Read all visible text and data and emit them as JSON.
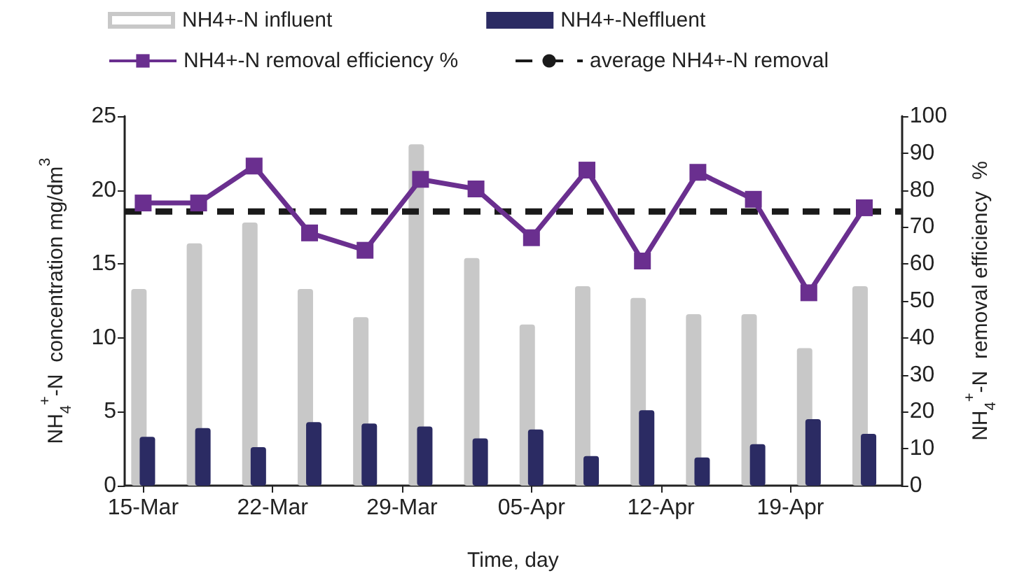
{
  "chart_data": {
    "type": "bar",
    "xlabel": "Time, day",
    "ylabel": "NH$_{4}$$^{+}$-N  concentration mg/dm$^{3}$",
    "y2label": "NH$_{4}$$^{+}$-N  removal efficiency  %",
    "x": [
      "--03-15",
      "--03-18",
      "--03-21",
      "--03-24",
      "--03-27",
      "--03-30",
      "--04-02",
      "--04-05",
      "--04-08",
      "--04-11",
      "--04-14",
      "--04-17",
      "--04-20",
      "--04-23"
    ],
    "series": [
      {
        "name": "NH4+-N influent",
        "color": "#c8c8c8",
        "values": [
          13.3,
          16.4,
          17.8,
          13.3,
          11.4,
          23.1,
          15.4,
          10.9,
          13.5,
          12.7,
          11.6,
          11.6,
          9.3,
          13.5
        ]
      },
      {
        "name": "NH4+-Neffluent",
        "color": "#2b2b63",
        "values": [
          3.3,
          3.9,
          2.6,
          4.3,
          4.2,
          4.0,
          3.2,
          3.8,
          2.0,
          5.1,
          1.9,
          2.8,
          4.5,
          3.5
        ]
      },
      {
        "name": "NH4+-N removal efficiency %",
        "type": "line",
        "axis": "y2",
        "color": "#6a2f8f",
        "values": [
          76.5,
          76.5,
          86.5,
          68.4,
          63.7,
          82.9,
          80.3,
          67.1,
          85.4,
          60.8,
          84.8,
          77.5,
          52.2,
          75.2
        ]
      }
    ],
    "ref_lines": [
      {
        "axis": "y2",
        "value": 74.2,
        "label": "average NH4+-N removal",
        "color": "#1a1a1a",
        "line_style": "dashed"
      }
    ],
    "xlim": [
      "--03-14",
      "--04-25"
    ],
    "xticks": [
      {
        "value": "--03-15",
        "label": "15-Mar"
      },
      {
        "value": "--03-22",
        "label": "22-Mar"
      },
      {
        "value": "--03-29",
        "label": "29-Mar"
      },
      {
        "value": "--04-05",
        "label": "05-Apr"
      },
      {
        "value": "--04-12",
        "label": "12-Apr"
      },
      {
        "value": "--04-19",
        "label": "19-Apr"
      }
    ],
    "ylim": [
      0,
      25
    ],
    "yticks": [
      0,
      5,
      10,
      15,
      20,
      25
    ],
    "y2lim": [
      0,
      100
    ],
    "y2ticks": [
      0,
      10,
      20,
      30,
      40,
      50,
      60,
      70,
      80,
      90,
      100
    ],
    "marker": "square",
    "grid": false,
    "legend": "top"
  }
}
